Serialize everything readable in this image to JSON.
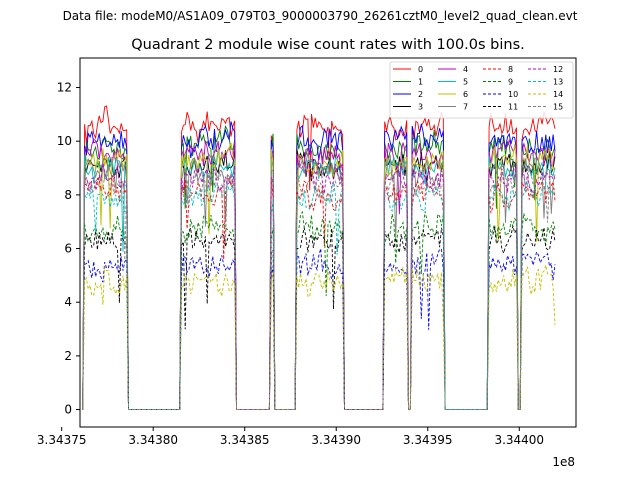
{
  "figure": {
    "suptitle": "Data file: modeM0/AS1A09_079T03_9000003790_26261cztM0_level2_quad_clean.evt"
  },
  "chart_data": {
    "type": "line",
    "title": "Quadrant 2 module wise count rates with 100.0s bins.",
    "xlabel": "",
    "ylabel": "",
    "x_offset_label": "1e8",
    "xlim": [
      3.34376,
      3.344031
    ],
    "ylim": [
      -0.65,
      13.1
    ],
    "x_ticks": [
      3.3438,
      3.34385,
      3.3439,
      3.34395,
      3.344
    ],
    "x_tick_labels": [
      "3.34380",
      "3.34385",
      "3.34390",
      "3.34395",
      "3.34400"
    ],
    "x_first_tick": 3.34375,
    "x_first_tick_label": "3.34375",
    "y_ticks": [
      0,
      2,
      4,
      6,
      8,
      10,
      12
    ],
    "y_tick_labels": [
      "0",
      "2",
      "4",
      "6",
      "8",
      "10",
      "12"
    ],
    "legend_position": "top-right",
    "visibility_windows": [
      [
        3.343762,
        3.343786
      ],
      [
        3.343815,
        3.343845
      ],
      [
        3.343864,
        3.343866
      ],
      [
        3.343878,
        3.343904
      ],
      [
        3.343926,
        3.343939
      ],
      [
        3.343941,
        3.343959
      ],
      [
        3.343983,
        3.343999
      ],
      [
        3.344001,
        3.34402
      ]
    ],
    "series": [
      {
        "name": "0",
        "color": "#ff0000",
        "dash": "solid",
        "level": 10.6
      },
      {
        "name": "1",
        "color": "#008000",
        "dash": "solid",
        "level": 9.8
      },
      {
        "name": "2",
        "color": "#0000ff",
        "dash": "solid",
        "level": 10.0
      },
      {
        "name": "3",
        "color": "#000000",
        "dash": "solid",
        "level": 9.1
      },
      {
        "name": "4",
        "color": "#bf00bf",
        "dash": "solid",
        "level": 9.5
      },
      {
        "name": "5",
        "color": "#00bfbf",
        "dash": "solid",
        "level": 9.0
      },
      {
        "name": "6",
        "color": "#bfbf00",
        "dash": "solid",
        "level": 9.2
      },
      {
        "name": "7",
        "color": "#808080",
        "dash": "solid",
        "level": 8.9
      },
      {
        "name": "8",
        "color": "#ff0000",
        "dash": "dashed",
        "level": 8.1
      },
      {
        "name": "9",
        "color": "#008000",
        "dash": "dashed",
        "level": 6.8
      },
      {
        "name": "10",
        "color": "#0000ff",
        "dash": "dashed",
        "level": 5.4
      },
      {
        "name": "11",
        "color": "#000000",
        "dash": "dashed",
        "level": 6.3
      },
      {
        "name": "12",
        "color": "#bf00bf",
        "dash": "dashed",
        "level": 8.7
      },
      {
        "name": "13",
        "color": "#00bfbf",
        "dash": "dashed",
        "level": 8.0
      },
      {
        "name": "14",
        "color": "#bfbf00",
        "dash": "dashed",
        "level": 4.8
      },
      {
        "name": "15",
        "color": "#808080",
        "dash": "dashed",
        "level": 8.4
      }
    ]
  }
}
